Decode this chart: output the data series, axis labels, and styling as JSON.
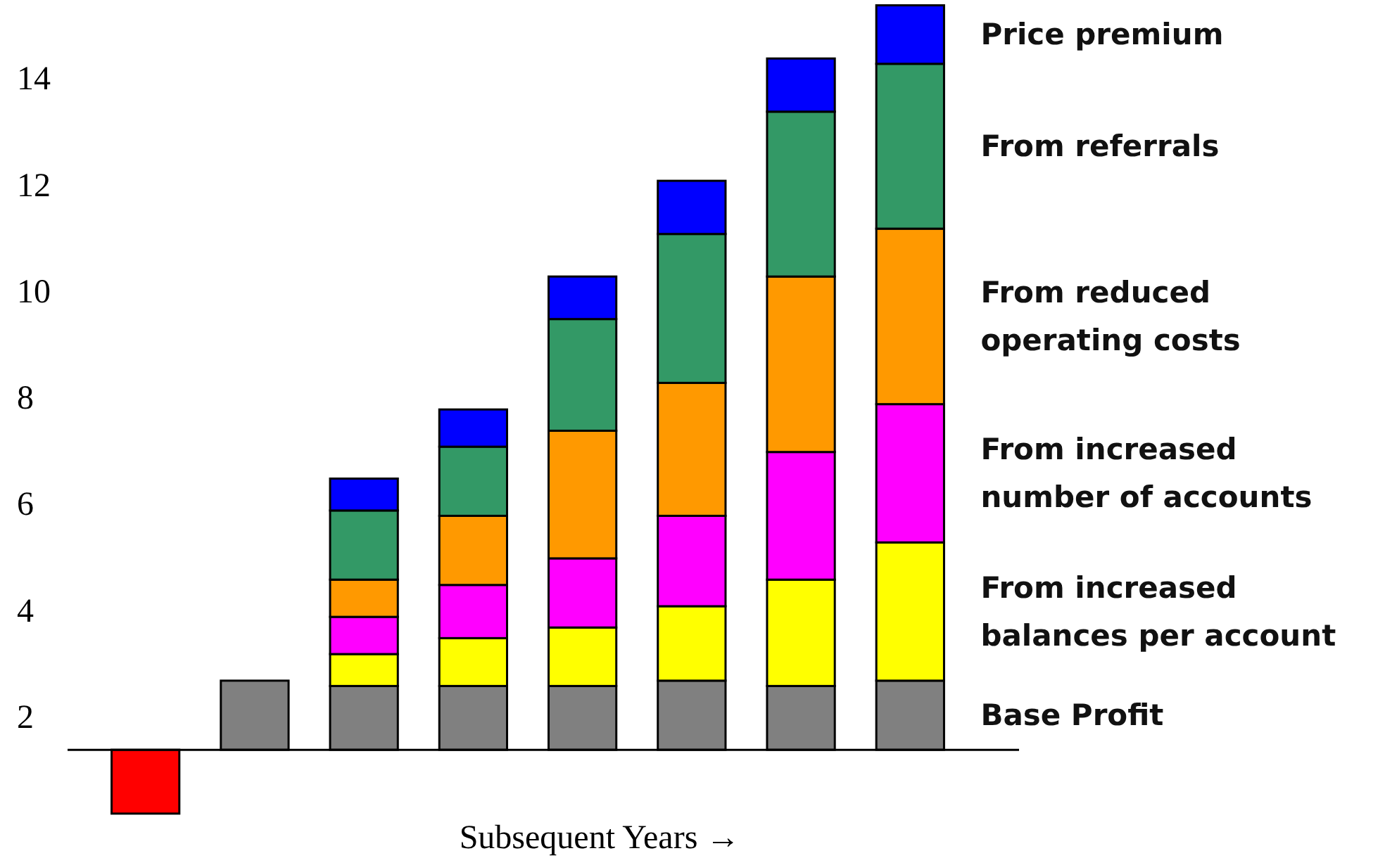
{
  "chart_data": {
    "type": "bar",
    "xlabel": "Subsequent Years →",
    "categories": [
      null,
      null,
      null,
      null,
      null,
      null,
      null,
      null
    ],
    "series": [
      {
        "name": "Base Profit",
        "colors": [
          "#ff0000",
          "#808080",
          "#808080",
          "#808080",
          "#808080",
          "#808080",
          "#808080",
          "#808080"
        ],
        "base": [
          1.4,
          1.4,
          1.4,
          1.4,
          1.4,
          1.4,
          1.4,
          1.4
        ],
        "values": [
          -1.2,
          1.3,
          1.2,
          1.2,
          1.2,
          1.3,
          1.2,
          1.3
        ]
      },
      {
        "name": "From increased balances per account",
        "color": "#ffff00",
        "base": [
          null,
          null,
          2.6,
          2.6,
          2.6,
          2.7,
          2.6,
          2.7
        ],
        "values": [
          null,
          null,
          0.6,
          0.9,
          1.1,
          1.4,
          2.0,
          2.6
        ]
      },
      {
        "name": "From increased number of accounts",
        "color": "#ff00ff",
        "base": [
          null,
          null,
          3.2,
          3.5,
          3.7,
          4.1,
          4.6,
          5.3
        ],
        "values": [
          null,
          null,
          0.7,
          1.0,
          1.3,
          1.7,
          2.4,
          2.6
        ]
      },
      {
        "name": "From reduced operating costs",
        "color": "#ff9900",
        "base": [
          null,
          null,
          3.9,
          4.5,
          5.0,
          5.8,
          7.0,
          7.9
        ],
        "values": [
          null,
          null,
          0.7,
          1.3,
          2.4,
          2.5,
          3.3,
          3.3
        ]
      },
      {
        "name": "From referrals",
        "color": "#339966",
        "base": [
          null,
          null,
          4.6,
          5.8,
          7.4,
          8.3,
          10.3,
          11.2
        ],
        "values": [
          null,
          null,
          1.3,
          1.3,
          2.1,
          2.8,
          3.1,
          3.1
        ]
      },
      {
        "name": "Price premium",
        "color": "#0000ff",
        "base": [
          null,
          null,
          5.9,
          7.1,
          9.5,
          11.1,
          13.4,
          14.3
        ],
        "values": [
          null,
          null,
          0.6,
          0.7,
          0.8,
          1.0,
          1.0,
          1.1
        ]
      }
    ],
    "ref_lines": [
      {
        "axis": "y",
        "value": 1.4,
        "color": "#000000"
      }
    ],
    "ylim": [
      0,
      15.5
    ],
    "yticks": [
      2,
      4,
      6,
      8,
      10,
      12,
      14
    ],
    "grid": false
  }
}
